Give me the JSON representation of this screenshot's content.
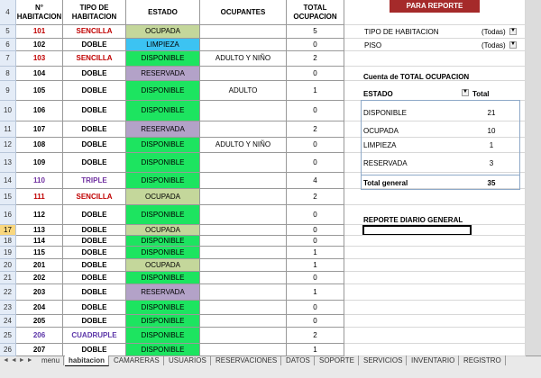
{
  "columns": [
    "N° HABITACION",
    "TIPO DE HABITACION",
    "ESTADO",
    "OCUPANTES",
    "TOTAL OCUPACION"
  ],
  "row_numbers": [
    4,
    5,
    6,
    7,
    8,
    9,
    10,
    11,
    12,
    13,
    14,
    15,
    16,
    17,
    18,
    19,
    20,
    21,
    22,
    23,
    24,
    25,
    26
  ],
  "active_row": 17,
  "rows": [
    {
      "numero": 101,
      "tipo": "SENCILLA",
      "estado": "OCUPADA",
      "total": 5
    },
    {
      "numero": 102,
      "tipo": "DOBLE",
      "estado": "LIMPIEZA",
      "total": 0
    },
    {
      "numero": 103,
      "tipo": "SENCILLA",
      "estado": "DISPONIBLE",
      "ocupantes": "ADULTO Y NIÑO",
      "total": 2
    },
    {
      "numero": 104,
      "tipo": "DOBLE",
      "estado": "RESERVADA",
      "total": 0
    },
    {
      "numero": 105,
      "tipo": "DOBLE",
      "estado": "DISPONIBLE",
      "ocupantes": "ADULTO",
      "total": 1
    },
    {
      "numero": 106,
      "tipo": "DOBLE",
      "estado": "DISPONIBLE",
      "total": 0
    },
    {
      "numero": 107,
      "tipo": "DOBLE",
      "estado": "RESERVADA",
      "total": 2
    },
    {
      "numero": 108,
      "tipo": "DOBLE",
      "estado": "DISPONIBLE",
      "ocupantes": "ADULTO Y NIÑO",
      "total": 0
    },
    {
      "numero": 109,
      "tipo": "DOBLE",
      "estado": "DISPONIBLE",
      "total": 0
    },
    {
      "numero": 110,
      "tipo": "TRIPLE",
      "estado": "DISPONIBLE",
      "total": 4
    },
    {
      "numero": 111,
      "tipo": "SENCILLA",
      "estado": "OCUPADA",
      "total": 2
    },
    {
      "numero": 112,
      "tipo": "DOBLE",
      "estado": "DISPONIBLE",
      "total": 0
    },
    {
      "numero": 113,
      "tipo": "DOBLE",
      "estado": "OCUPADA",
      "total": 0
    },
    {
      "numero": 114,
      "tipo": "DOBLE",
      "estado": "DISPONIBLE",
      "total": 0
    },
    {
      "numero": 115,
      "tipo": "DOBLE",
      "estado": "DISPONIBLE",
      "total": 1
    },
    {
      "numero": 201,
      "tipo": "DOBLE",
      "estado": "OCUPADA",
      "total": 1
    },
    {
      "numero": 202,
      "tipo": "DOBLE",
      "estado": "DISPONIBLE",
      "total": 0
    },
    {
      "numero": 203,
      "tipo": "DOBLE",
      "estado": "RESERVADA",
      "total": 1
    },
    {
      "numero": 204,
      "tipo": "DOBLE",
      "estado": "DISPONIBLE",
      "total": 0
    },
    {
      "numero": 205,
      "tipo": "DOBLE",
      "estado": "DISPONIBLE",
      "total": 0
    },
    {
      "numero": 206,
      "tipo": "CUADRUPLE",
      "estado": "DISPONIBLE",
      "total": 2
    },
    {
      "numero": 207,
      "tipo": "DOBLE",
      "estado": "DISPONIBLE",
      "total": 1
    }
  ],
  "estado_colors": {
    "OCUPADA": "#c4d79b",
    "LIMPIEZA": "#3cc3f2",
    "DISPONIBLE": "#1de460",
    "RESERVADA": "#b3a2c8"
  },
  "tipo_colors": {
    "SENCILLA": "#c00000",
    "DOBLE": "#000000",
    "TRIPLE": "#7030a0",
    "CUADRUPLE": "#5b35a8"
  },
  "button": "PARA REPORTE",
  "pivot": {
    "filters": [
      {
        "label": "TIPO DE HABITACION",
        "value": "(Todas)"
      },
      {
        "label": "PISO",
        "value": "(Todas)"
      }
    ],
    "title": "Cuenta de TOTAL OCUPACION",
    "headers": [
      "ESTADO",
      "Total"
    ],
    "rows": [
      {
        "estado": "DISPONIBLE",
        "total": 21
      },
      {
        "estado": "OCUPADA",
        "total": 10
      },
      {
        "estado": "LIMPIEZA",
        "total": 1
      },
      {
        "estado": "RESERVADA",
        "total": 3
      }
    ],
    "grand_total": {
      "label": "Total general",
      "total": 35
    }
  },
  "report_label": "REPORTE DIARIO GENERAL",
  "sheet_tabs": [
    "menu",
    "habitacion",
    "CAMARERAS",
    "USUARIOS",
    "RESERVACIONES",
    "DATOS",
    "SOPORTE",
    "SERVICIOS",
    "INVENTARIO",
    "REGISTRO"
  ],
  "active_tab": 1
}
